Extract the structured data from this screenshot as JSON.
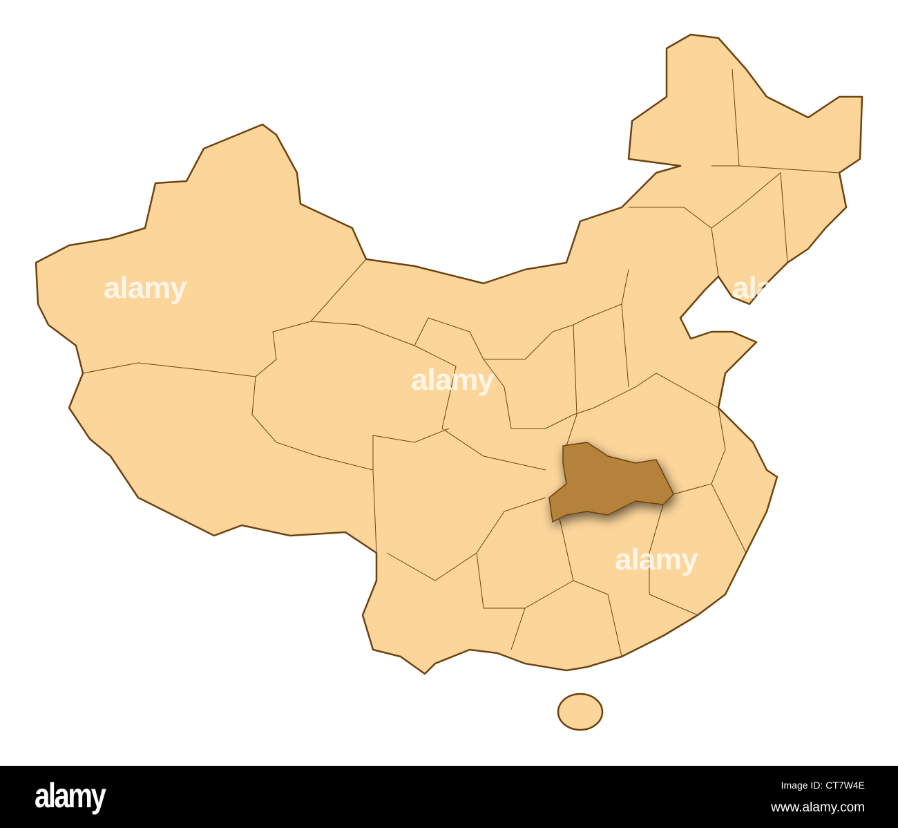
{
  "map": {
    "region": "China",
    "highlighted_region": "Hubei",
    "colors": {
      "land": "#fcd59a",
      "border": "#6b4210",
      "highlight": "#b5823a"
    }
  },
  "watermarks": [
    "alamy",
    "alamy",
    "alamy",
    "alamy"
  ],
  "footer": {
    "logo": "alamy",
    "image_id": "Image ID: CT7W4E",
    "site": "www.alamy.com"
  }
}
